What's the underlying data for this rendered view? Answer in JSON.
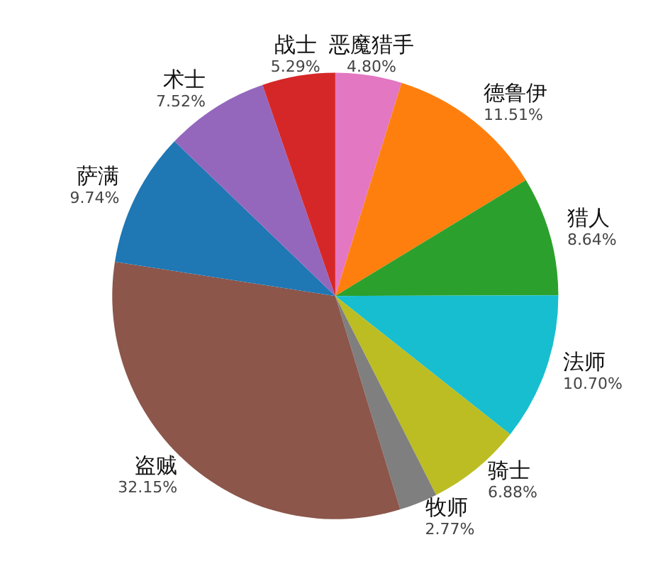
{
  "chart_data": {
    "type": "pie",
    "categories": [
      "恶魔猎手",
      "德鲁伊",
      "猎人",
      "法师",
      "骑士",
      "牧师",
      "盗贼",
      "萨满",
      "术士",
      "战士"
    ],
    "values": [
      4.8,
      11.51,
      8.64,
      10.7,
      6.88,
      2.77,
      32.15,
      9.74,
      7.52,
      5.29
    ],
    "value_labels": [
      "4.80%",
      "11.51%",
      "8.64%",
      "10.70%",
      "6.88%",
      "2.77%",
      "32.15%",
      "9.74%",
      "7.52%",
      "5.29%"
    ],
    "colors": [
      "#e377c2",
      "#ff7f0e",
      "#2ca02c",
      "#17becf",
      "#bcbd22",
      "#7f7f7f",
      "#8c564b",
      "#1f77b4",
      "#9467bd",
      "#d62728"
    ]
  }
}
